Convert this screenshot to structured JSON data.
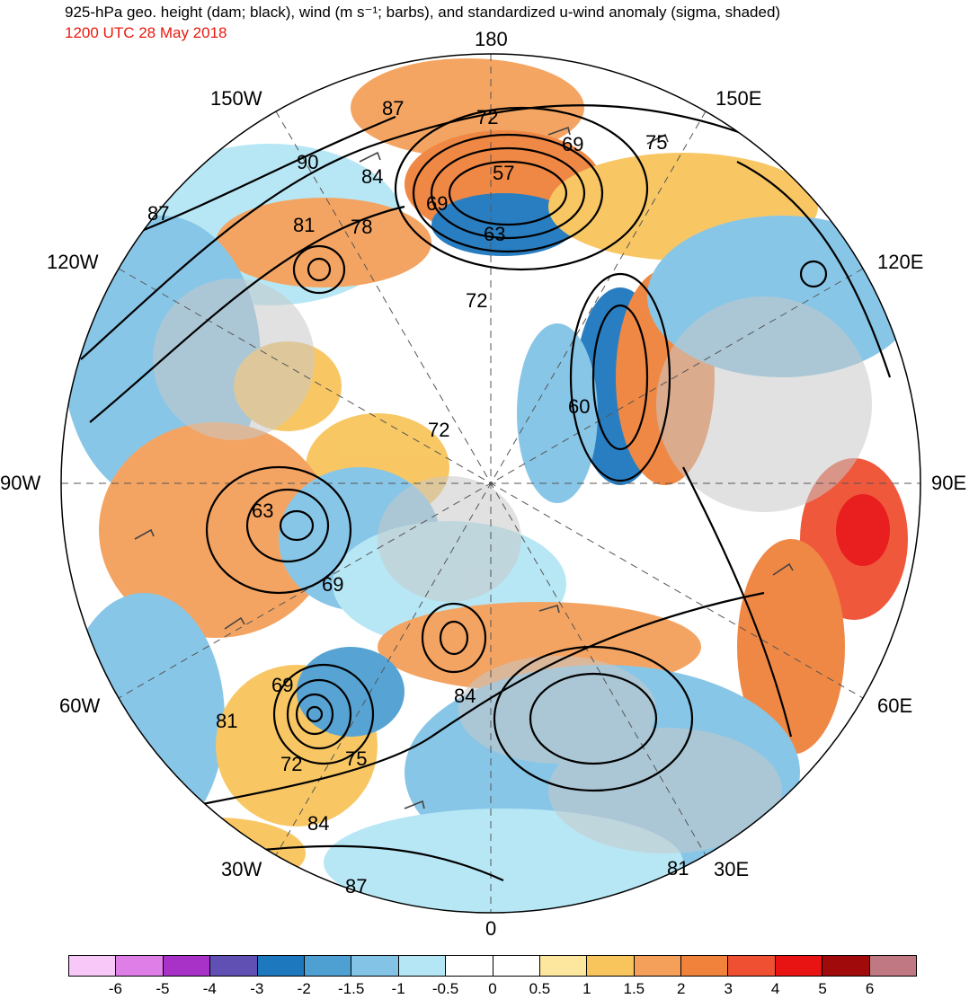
{
  "header": {
    "title": "925-hPa geo. height (dam; black), wind (m s⁻¹; barbs), and standardized u-wind anomaly (sigma, shaded)",
    "valid_time": "1200 UTC 28 May 2018",
    "valid_time_color": "#e8190f"
  },
  "map": {
    "projection": "north polar stereographic",
    "longitude_labels": {
      "top": "180",
      "top_left": "150W",
      "top_right": "150E",
      "upper_left": "120W",
      "upper_right": "120E",
      "left": "90W",
      "right": "90E",
      "lower_left": "60W",
      "lower_right": "60E",
      "bottom_left": "30W",
      "bottom_right": "30E",
      "bottom": "0"
    },
    "contour_labels": [
      "87",
      "72",
      "69",
      "75",
      "90",
      "84",
      "57",
      "87",
      "81",
      "78",
      "69",
      "63",
      "72",
      "60",
      "72",
      "63",
      "69",
      "69",
      "81",
      "72",
      "75",
      "84",
      "84",
      "87",
      "81"
    ],
    "land_color": "#c8c8c8",
    "ocean_color": "#ffffff"
  },
  "colorbar": {
    "colors": [
      "#f8c8f8",
      "#e07ee8",
      "#a832c8",
      "#6050b4",
      "#1e78be",
      "#4fa0d2",
      "#82c3e6",
      "#b4e6f5",
      "#ffffff",
      "#ffffff",
      "#fde79e",
      "#f8c55c",
      "#f4a05a",
      "#f0823c",
      "#f05032",
      "#e81414",
      "#a00a0a",
      "#c07882"
    ],
    "labels": [
      "-6",
      "-5",
      "-4",
      "-3",
      "-2",
      "-1.5",
      "-1",
      "-0.5",
      "0",
      "0.5",
      "1",
      "1.5",
      "2",
      "3",
      "4",
      "5",
      "6"
    ]
  }
}
